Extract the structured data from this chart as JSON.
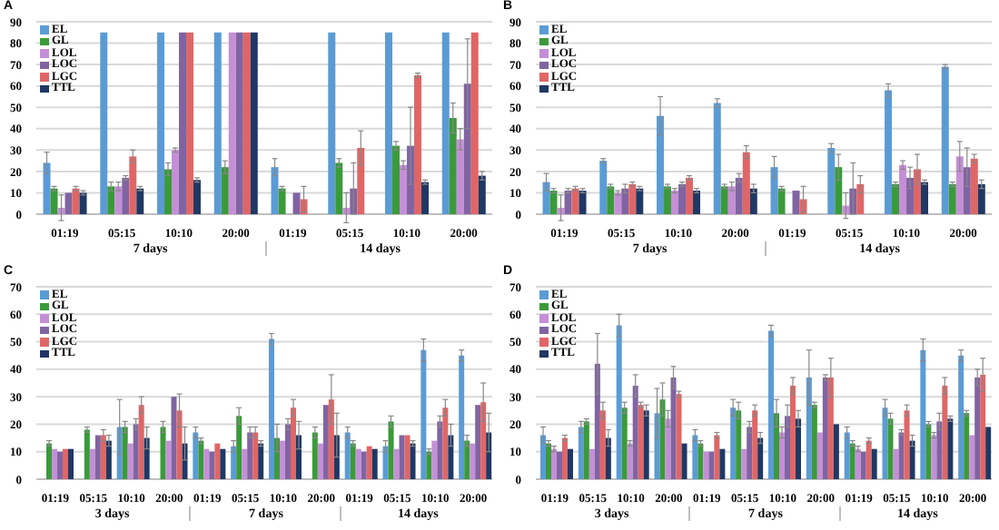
{
  "chart_data": [
    {
      "type": "bar",
      "title": "A",
      "categories": [
        "01:19",
        "05:15",
        "10:10",
        "20:00",
        "01:19",
        "05:15",
        "10:10",
        "20:00"
      ],
      "annotations": [
        "7 days",
        "14 days"
      ],
      "ylim": [
        0,
        90
      ],
      "yticks": [
        0,
        10,
        20,
        30,
        40,
        50,
        60,
        70,
        80,
        90
      ],
      "grid": "y",
      "legend": "top left",
      "series": [
        {
          "name": "EL",
          "color": "#5b9bd5",
          "values": [
            24,
            85,
            85,
            85,
            22,
            85,
            85,
            85
          ],
          "errors": [
            5,
            null,
            null,
            null,
            4,
            null,
            null,
            null
          ]
        },
        {
          "name": "GL",
          "color": "#3a9a3a",
          "values": [
            12,
            13,
            21,
            22,
            12,
            24,
            32,
            45
          ],
          "errors": [
            1,
            2,
            3,
            3,
            1,
            2,
            2,
            7
          ]
        },
        {
          "name": "LOL",
          "color": "#c58fd6",
          "values": [
            3,
            13,
            30,
            85,
            null,
            3,
            23,
            35
          ],
          "errors": [
            6,
            2,
            1,
            null,
            null,
            7,
            2,
            5
          ]
        },
        {
          "name": "LOC",
          "color": "#8064a2",
          "values": [
            10,
            17,
            85,
            85,
            10,
            12,
            32,
            61
          ],
          "errors": [
            null,
            1,
            null,
            null,
            null,
            12,
            18,
            21
          ]
        },
        {
          "name": "LGC",
          "color": "#e06666",
          "values": [
            12,
            27,
            85,
            85,
            7,
            31,
            65,
            85
          ],
          "errors": [
            1,
            3,
            null,
            null,
            6,
            8,
            1,
            null
          ]
        },
        {
          "name": "TTL",
          "color": "#1f3864",
          "values": [
            10,
            12,
            16,
            85,
            null,
            null,
            15,
            18
          ],
          "errors": [
            1,
            1,
            1,
            null,
            null,
            null,
            1,
            2
          ]
        }
      ]
    },
    {
      "type": "bar",
      "title": "B",
      "categories": [
        "01:19",
        "05:15",
        "10:10",
        "20:00",
        "01:19",
        "05:15",
        "10:10",
        "20:00"
      ],
      "annotations": [
        "7 days",
        "14 days"
      ],
      "ylim": [
        0,
        90
      ],
      "yticks": [
        0,
        10,
        20,
        30,
        40,
        50,
        60,
        70,
        80,
        90
      ],
      "grid": "y",
      "legend": "top left",
      "series": [
        {
          "name": "EL",
          "color": "#5b9bd5",
          "values": [
            15,
            25,
            46,
            52,
            22,
            31,
            58,
            69
          ],
          "errors": [
            4,
            1,
            9,
            2,
            5,
            2,
            3,
            1
          ]
        },
        {
          "name": "GL",
          "color": "#3a9a3a",
          "values": [
            11,
            13,
            13,
            13,
            12,
            22,
            14,
            14
          ],
          "errors": [
            1,
            1,
            1,
            1,
            1,
            6,
            1,
            1
          ]
        },
        {
          "name": "LOL",
          "color": "#c58fd6",
          "values": [
            3,
            10,
            11,
            13,
            null,
            4,
            23,
            27
          ],
          "errors": [
            6,
            1,
            1,
            2,
            null,
            6,
            2,
            7
          ]
        },
        {
          "name": "LOC",
          "color": "#8064a2",
          "values": [
            11,
            12,
            14,
            17,
            11,
            12,
            17,
            22
          ],
          "errors": [
            1,
            2,
            1,
            2,
            null,
            12,
            5,
            9
          ]
        },
        {
          "name": "LGC",
          "color": "#e06666",
          "values": [
            12,
            14,
            17,
            29,
            7,
            14,
            21,
            26
          ],
          "errors": [
            1,
            1,
            1,
            3,
            6,
            4,
            7,
            2
          ]
        },
        {
          "name": "TTL",
          "color": "#1f3864",
          "values": [
            11,
            12,
            11,
            12,
            null,
            null,
            15,
            14
          ],
          "errors": [
            1,
            1,
            1,
            2,
            null,
            null,
            1,
            2
          ]
        }
      ]
    },
    {
      "type": "bar",
      "title": "C",
      "categories": [
        "01:19",
        "05:15",
        "10:10",
        "20:00",
        "01:19",
        "05:15",
        "10:10",
        "20:00",
        "01:19",
        "05:15",
        "10:10",
        "20:00"
      ],
      "annotations": [
        "3 days",
        "7 days",
        "14 days"
      ],
      "ylim": [
        0,
        70
      ],
      "yticks": [
        0,
        10,
        20,
        30,
        40,
        50,
        60,
        70
      ],
      "grid": "y",
      "legend": "top left",
      "series": [
        {
          "name": "EL",
          "color": "#5b9bd5",
          "values": [
            null,
            null,
            19,
            null,
            17,
            12,
            51,
            null,
            17,
            12,
            47,
            45
          ],
          "errors": [
            null,
            null,
            10,
            null,
            2,
            2,
            2,
            null,
            2,
            2,
            4,
            2
          ]
        },
        {
          "name": "GL",
          "color": "#3a9a3a",
          "values": [
            13,
            18,
            19,
            19,
            14,
            23,
            15,
            17,
            13,
            21,
            10,
            14
          ],
          "errors": [
            1,
            1,
            2,
            2,
            1,
            3,
            5,
            2,
            1,
            2,
            1,
            2
          ]
        },
        {
          "name": "LOL",
          "color": "#c58fd6",
          "values": [
            11,
            11,
            13,
            14,
            11,
            11,
            14,
            13,
            11,
            11,
            14,
            13
          ],
          "errors": [
            null,
            null,
            null,
            null,
            null,
            null,
            null,
            null,
            null,
            null,
            null,
            null
          ]
        },
        {
          "name": "LOC",
          "color": "#8064a2",
          "values": [
            10,
            16,
            20,
            30,
            10,
            17,
            20,
            27,
            10,
            16,
            21,
            27
          ],
          "errors": [
            null,
            null,
            2,
            null,
            null,
            2,
            2,
            null,
            null,
            null,
            2,
            null
          ]
        },
        {
          "name": "LGC",
          "color": "#e06666",
          "values": [
            11,
            16,
            27,
            25,
            13,
            17,
            26,
            29,
            12,
            16,
            26,
            28
          ],
          "errors": [
            null,
            2,
            3,
            6,
            null,
            2,
            3,
            9,
            null,
            null,
            3,
            7
          ]
        },
        {
          "name": "TTL",
          "color": "#1f3864",
          "values": [
            11,
            14,
            15,
            13,
            11,
            13,
            16,
            16,
            11,
            13,
            16,
            17
          ],
          "errors": [
            null,
            2,
            4,
            6,
            null,
            1,
            5,
            8,
            null,
            1,
            4,
            7
          ]
        }
      ]
    },
    {
      "type": "bar",
      "title": "D",
      "categories": [
        "01:19",
        "05:15",
        "10:10",
        "20:00",
        "01:19",
        "05:15",
        "10:10",
        "20:00",
        "01:19",
        "05:15",
        "10:10",
        "20:00"
      ],
      "annotations": [
        "3 days",
        "7 days",
        "14 days"
      ],
      "ylim": [
        0,
        70
      ],
      "yticks": [
        0,
        10,
        20,
        30,
        40,
        50,
        60,
        70
      ],
      "grid": "y",
      "legend": "top left",
      "series": [
        {
          "name": "EL",
          "color": "#5b9bd5",
          "values": [
            16,
            19,
            56,
            24,
            16,
            26,
            54,
            37,
            17,
            26,
            47,
            45
          ],
          "errors": [
            3,
            2,
            4,
            9,
            2,
            3,
            2,
            10,
            2,
            3,
            4,
            2
          ]
        },
        {
          "name": "GL",
          "color": "#3a9a3a",
          "values": [
            13,
            21,
            26,
            29,
            13,
            25,
            24,
            27,
            13,
            22,
            20,
            24
          ],
          "errors": [
            1,
            1,
            2,
            6,
            1,
            3,
            5,
            1,
            1,
            2,
            1,
            1
          ]
        },
        {
          "name": "LOL",
          "color": "#c58fd6",
          "values": [
            11,
            11,
            13,
            22,
            10,
            11,
            17,
            17,
            11,
            11,
            16,
            16
          ],
          "errors": [
            1,
            null,
            1,
            3,
            null,
            null,
            2,
            null,
            1,
            null,
            1,
            null
          ]
        },
        {
          "name": "LOC",
          "color": "#8064a2",
          "values": [
            10,
            42,
            34,
            37,
            10,
            19,
            23,
            37,
            10,
            17,
            21,
            37
          ],
          "errors": [
            null,
            11,
            4,
            4,
            null,
            2,
            4,
            1,
            null,
            1,
            3,
            3
          ]
        },
        {
          "name": "LGC",
          "color": "#e06666",
          "values": [
            15,
            25,
            27,
            31,
            16,
            25,
            34,
            37,
            14,
            25,
            34,
            38
          ],
          "errors": [
            1,
            3,
            1,
            1,
            1,
            2,
            3,
            7,
            1,
            2,
            3,
            6
          ]
        },
        {
          "name": "TTL",
          "color": "#1f3864",
          "values": [
            11,
            15,
            25,
            13,
            11,
            15,
            22,
            20,
            11,
            14,
            22,
            19
          ],
          "errors": [
            null,
            3,
            2,
            null,
            null,
            2,
            3,
            null,
            null,
            2,
            1,
            null
          ]
        }
      ]
    }
  ]
}
